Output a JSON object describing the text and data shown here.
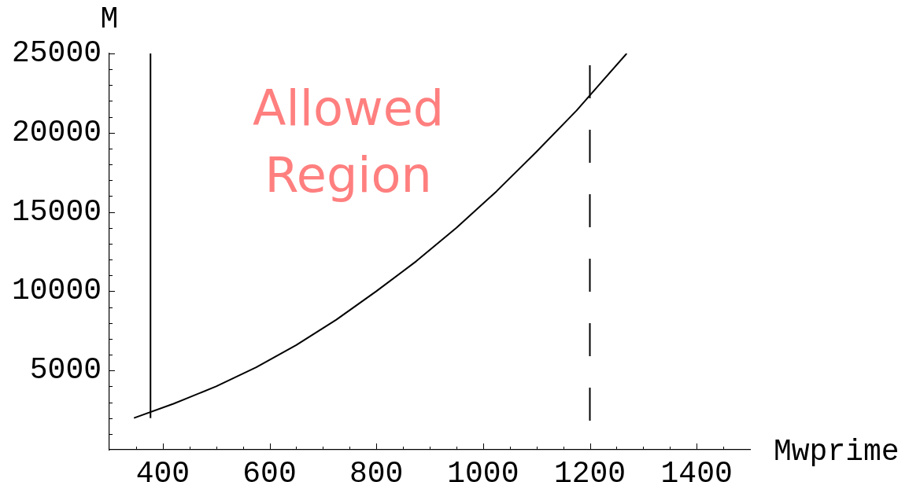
{
  "chart_data": {
    "type": "line",
    "xlabel": "Mwprime",
    "ylabel": "M",
    "annotations": [
      "Allowed Region"
    ],
    "xlim": [
      300,
      1500
    ],
    "ylim": [
      0,
      25000
    ],
    "xticks": [
      {
        "value": 350,
        "label": null
      },
      400,
      {
        "value": 450,
        "label": null
      },
      {
        "value": 500,
        "label": null
      },
      {
        "value": 550,
        "label": null
      },
      600,
      {
        "value": 650,
        "label": null
      },
      {
        "value": 700,
        "label": null
      },
      {
        "value": 750,
        "label": null
      },
      800,
      {
        "value": 850,
        "label": null
      },
      {
        "value": 900,
        "label": null
      },
      {
        "value": 950,
        "label": null
      },
      1000,
      {
        "value": 1050,
        "label": null
      },
      {
        "value": 1100,
        "label": null
      },
      {
        "value": 1150,
        "label": null
      },
      1200,
      {
        "value": 1250,
        "label": null
      },
      {
        "value": 1300,
        "label": null
      },
      {
        "value": 1350,
        "label": null
      },
      1400,
      {
        "value": 1450,
        "label": null
      }
    ],
    "yticks": [
      {
        "value": 1000,
        "label": null
      },
      {
        "value": 2000,
        "label": null
      },
      {
        "value": 3000,
        "label": null
      },
      {
        "value": 4000,
        "label": null
      },
      5000,
      {
        "value": 6000,
        "label": null
      },
      {
        "value": 7000,
        "label": null
      },
      {
        "value": 8000,
        "label": null
      },
      {
        "value": 9000,
        "label": null
      },
      10000,
      {
        "value": 11000,
        "label": null
      },
      {
        "value": 12000,
        "label": null
      },
      {
        "value": 13000,
        "label": null
      },
      {
        "value": 14000,
        "label": null
      },
      15000,
      {
        "value": 16000,
        "label": null
      },
      {
        "value": 17000,
        "label": null
      },
      {
        "value": 18000,
        "label": null
      },
      {
        "value": 19000,
        "label": null
      },
      20000,
      {
        "value": 21000,
        "label": null
      },
      {
        "value": 22000,
        "label": null
      },
      {
        "value": 23000,
        "label": null
      },
      {
        "value": 24000,
        "label": null
      },
      25000
    ],
    "grid": false,
    "legend": false,
    "marker": "none",
    "series": [
      {
        "color": "#000000",
        "x": [
          346,
          420,
          500,
          575,
          650,
          725,
          800,
          875,
          950,
          1025,
          1100,
          1175,
          1269
        ],
        "values": [
          2000,
          2900,
          4000,
          5200,
          6600,
          8200,
          10000,
          11900,
          14000,
          16300,
          18800,
          21400,
          25000
        ]
      },
      {
        "color": "#000000",
        "x": [
          377,
          377
        ],
        "values": [
          2000,
          25000
        ]
      }
    ],
    "ref_lines": [
      {
        "axis": "x",
        "value": 1200,
        "color": "#000000",
        "line_style": "dashed"
      }
    ]
  }
}
